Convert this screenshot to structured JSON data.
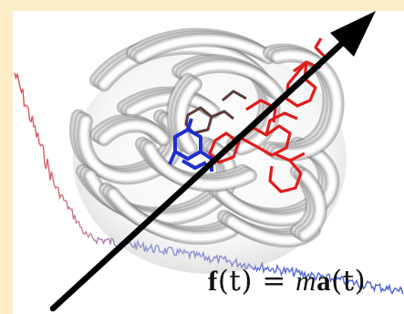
{
  "equation": {
    "f_symbol": "f",
    "lhs_arg": "(t)",
    "equals": " = ",
    "mass_symbol": "m",
    "a_symbol": "a",
    "rhs_arg": "(t)"
  },
  "colors": {
    "background": "#fbeec8",
    "panel": "#ffffff",
    "trace_high": "#e04040",
    "trace_low": "#5a6ad8",
    "ligand_red": "#e21b1b",
    "ligand_blue": "#1f2fd0",
    "ligand_dark": "#5a3a3a",
    "arrow": "#000000",
    "ribbon": "#d9d9d9"
  },
  "icons": {
    "arrow": "force-arrow-icon",
    "protein": "protein-ribbon-icon"
  }
}
